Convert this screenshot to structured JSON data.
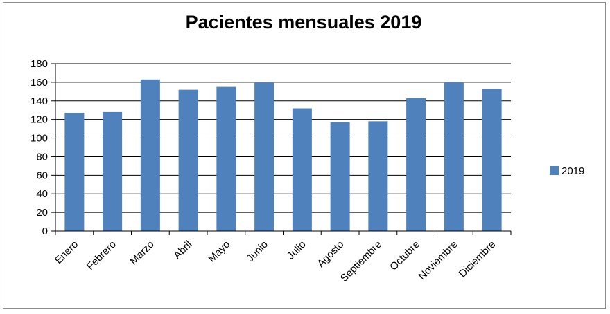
{
  "chart_data": {
    "type": "bar",
    "title": "Pacientes mensuales 2019",
    "xlabel": "",
    "ylabel": "",
    "categories": [
      "Enero",
      "Febrero",
      "Marzo",
      "Abril",
      "Mayo",
      "Junio",
      "Julio",
      "Agosto",
      "Septiembre",
      "Octubre",
      "Noviembre",
      "Diciembre"
    ],
    "series": [
      {
        "name": "2019",
        "values": [
          127,
          128,
          163,
          152,
          155,
          160,
          132,
          117,
          118,
          143,
          160,
          153
        ],
        "color": "#4f81bd"
      }
    ],
    "ylim": [
      0,
      180
    ],
    "yticks": [
      0,
      20,
      40,
      60,
      80,
      100,
      120,
      140,
      160,
      180
    ],
    "grid": true,
    "legend": "right"
  }
}
